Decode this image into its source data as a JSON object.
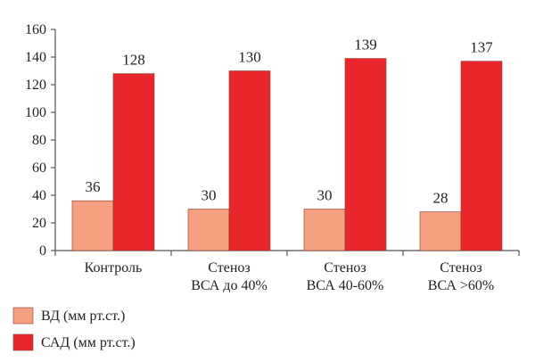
{
  "chart_data": {
    "type": "bar",
    "categories": [
      [
        "Контроль"
      ],
      [
        "Стеноз",
        "ВСА до 40%"
      ],
      [
        "Стеноз",
        "ВСА 40-60%"
      ],
      [
        "Стеноз",
        "ВСА >60%"
      ]
    ],
    "series": [
      {
        "name": "ВД (мм рт.ст.)",
        "values": [
          36,
          30,
          30,
          28
        ],
        "color": "#f4a081"
      },
      {
        "name": "САД (мм рт.ст.)",
        "values": [
          128,
          130,
          139,
          137
        ],
        "color": "#e8262b"
      }
    ],
    "ylim": [
      0,
      160
    ],
    "yticks": [
      0,
      20,
      40,
      60,
      80,
      100,
      120,
      140,
      160
    ],
    "grid": false,
    "legend_position": "bottom-left"
  }
}
